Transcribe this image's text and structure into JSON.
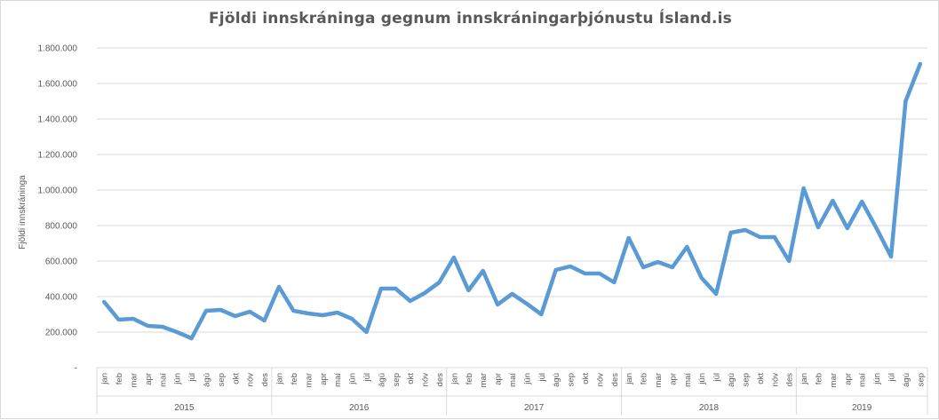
{
  "chart_data": {
    "type": "line",
    "title": "Fjöldi innskráninga  gegnum innskráningarþjónustu  Ísland.is",
    "ylabel": "Fjöldi innskráninga",
    "xlabel": "",
    "ylim": [
      0,
      1800000
    ],
    "yticks": [
      "-",
      "200.000",
      "400.000",
      "600.000",
      "800.000",
      "1.000.000",
      "1.200.000",
      "1.400.000",
      "1.600.000",
      "1.800.000"
    ],
    "grid": true,
    "legend": "none",
    "line_color": "#5b9bd5",
    "years": [
      {
        "label": "2015",
        "months": [
          "jan",
          "feb",
          "mar",
          "apr",
          "maí",
          "jún",
          "júl",
          "ágú",
          "sep",
          "okt",
          "nóv",
          "des"
        ]
      },
      {
        "label": "2016",
        "months": [
          "jan",
          "feb",
          "mar",
          "apr",
          "maí",
          "jún",
          "júl",
          "ágú",
          "sep",
          "okt",
          "nóv",
          "des"
        ]
      },
      {
        "label": "2017",
        "months": [
          "jan",
          "feb",
          "mar",
          "apr",
          "maí",
          "jún",
          "júl",
          "ágú",
          "sep",
          "okt",
          "nóv",
          "des"
        ]
      },
      {
        "label": "2018",
        "months": [
          "jan",
          "feb",
          "mar",
          "apr",
          "maí",
          "jún",
          "júl",
          "ágú",
          "sep",
          "okt",
          "nóv",
          "des"
        ]
      },
      {
        "label": "2019",
        "months": [
          "jan",
          "feb",
          "mar",
          "apr",
          "maí",
          "jún",
          "júl",
          "ágú",
          "sep"
        ]
      }
    ],
    "values": [
      370000,
      270000,
      275000,
      235000,
      230000,
      200000,
      165000,
      320000,
      325000,
      290000,
      315000,
      265000,
      455000,
      320000,
      305000,
      295000,
      310000,
      275000,
      200000,
      445000,
      445000,
      375000,
      420000,
      480000,
      620000,
      435000,
      545000,
      355000,
      415000,
      360000,
      300000,
      550000,
      570000,
      530000,
      530000,
      480000,
      730000,
      565000,
      595000,
      565000,
      680000,
      505000,
      415000,
      760000,
      775000,
      735000,
      735000,
      600000,
      1010000,
      790000,
      940000,
      785000,
      935000,
      785000,
      625000,
      1500000,
      1710000
    ]
  }
}
